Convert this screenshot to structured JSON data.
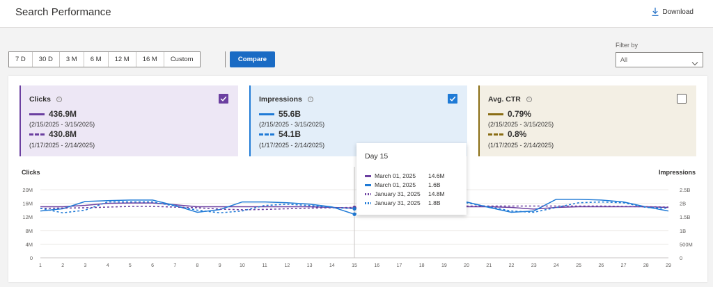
{
  "header": {
    "title": "Search Performance",
    "download_label": "Download"
  },
  "toolbar": {
    "ranges": [
      "7 D",
      "30 D",
      "3 M",
      "6 M",
      "12 M",
      "16 M",
      "Custom"
    ],
    "compare_label": "Compare",
    "filter_label": "Filter by",
    "filter_value": "All"
  },
  "cards": {
    "clicks": {
      "title": "Clicks",
      "current_value": "436.9M",
      "current_range": "(2/15/2025 - 3/15/2025)",
      "previous_value": "430.8M",
      "previous_range": "(1/17/2025 - 2/14/2025)",
      "checked": true,
      "color": "#6b3fa0",
      "bg": "#ede7f5"
    },
    "impressions": {
      "title": "Impressions",
      "current_value": "55.6B",
      "current_range": "(2/15/2025 - 3/15/2025)",
      "previous_value": "54.1B",
      "previous_range": "(1/17/2025 - 2/14/2025)",
      "checked": true,
      "color": "#1f7ad6",
      "bg": "#e3eef9"
    },
    "ctr": {
      "title": "Avg. CTR",
      "current_value": "0.79%",
      "current_range": "(2/15/2025 - 3/15/2025)",
      "previous_value": "0.8%",
      "previous_range": "(1/17/2025 - 2/14/2025)",
      "checked": false,
      "color": "#8a6d14",
      "bg": "#f3efe4"
    }
  },
  "tooltip": {
    "title": "Day 15",
    "rows": [
      {
        "date": "March 01, 2025",
        "value": "14.6M"
      },
      {
        "date": "March 01, 2025",
        "value": "1.6B"
      },
      {
        "date": "January 31, 2025",
        "value": "14.8M"
      },
      {
        "date": "January 31, 2025",
        "value": "1.8B"
      }
    ]
  },
  "chart_data": {
    "type": "line",
    "ylabel": "Clicks",
    "y2label": "Impressions",
    "x": [
      1,
      2,
      3,
      4,
      5,
      6,
      7,
      8,
      9,
      10,
      11,
      12,
      13,
      14,
      15,
      16,
      17,
      18,
      19,
      20,
      21,
      22,
      23,
      24,
      25,
      26,
      27,
      28,
      29
    ],
    "ylim": [
      0,
      20000000
    ],
    "y_ticks": [
      "0",
      "4M",
      "8M",
      "12M",
      "16M",
      "20M"
    ],
    "y2lim": [
      0,
      2500000000
    ],
    "y2_ticks": [
      "0",
      "500M",
      "1B",
      "1.5B",
      "2B",
      "2.5B"
    ],
    "grid": true,
    "highlight_x": 15,
    "series": [
      {
        "axis": "left",
        "style": "solid",
        "color": "#6b3fa0",
        "values": [
          15.0,
          15.0,
          15.4,
          16.0,
          16.1,
          16.1,
          15.6,
          15.0,
          15.0,
          15.0,
          15.0,
          15.0,
          15.0,
          14.8,
          14.6,
          14.8,
          15.0,
          15.2,
          15.2,
          15.0,
          15.0,
          14.8,
          14.3,
          14.8,
          15.0,
          15.0,
          15.0,
          15.0,
          14.8
        ]
      },
      {
        "axis": "right",
        "style": "solid",
        "color": "#1f7ad6",
        "values": [
          1.72,
          1.8,
          2.07,
          2.1,
          2.12,
          2.12,
          1.92,
          1.67,
          1.77,
          2.05,
          2.05,
          2.02,
          1.97,
          1.87,
          1.6,
          1.82,
          1.92,
          1.9,
          1.92,
          2.05,
          1.85,
          1.67,
          1.72,
          2.15,
          2.15,
          2.12,
          2.05,
          1.87,
          1.72
        ]
      },
      {
        "axis": "left",
        "style": "dashed",
        "color": "#6b3fa0",
        "values": [
          14.5,
          14.6,
          14.7,
          14.9,
          15.1,
          15.1,
          14.9,
          14.7,
          14.3,
          14.1,
          14.2,
          14.4,
          14.6,
          14.7,
          14.8,
          15.0,
          15.1,
          15.1,
          15.2,
          15.2,
          15.2,
          15.2,
          15.2,
          15.2,
          15.2,
          15.2,
          15.1,
          15.0,
          14.9
        ]
      },
      {
        "axis": "right",
        "style": "dashed",
        "color": "#1f7ad6",
        "values": [
          1.82,
          1.65,
          1.75,
          2.05,
          2.05,
          2.05,
          1.9,
          1.75,
          1.65,
          1.72,
          1.92,
          1.97,
          1.92,
          1.85,
          1.8,
          1.7,
          1.72,
          1.8,
          1.92,
          2.02,
          1.87,
          1.72,
          1.67,
          1.85,
          2.02,
          2.05,
          2.02,
          1.85,
          1.82
        ]
      }
    ]
  }
}
